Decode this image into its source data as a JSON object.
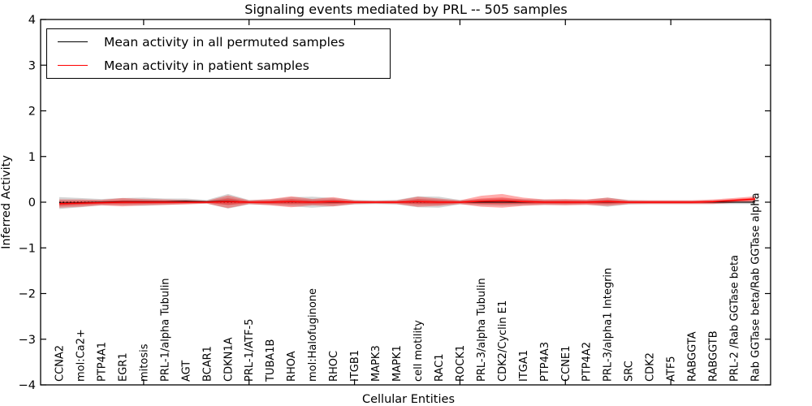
{
  "chart_data": {
    "type": "line",
    "title": "Signaling events mediated by PRL -- 505 samples",
    "xlabel": "Cellular Entities",
    "ylabel": "Inferred Activity",
    "ylim": [
      -4,
      4
    ],
    "ytick_labels": [
      "4",
      "3",
      "2",
      "1",
      "0",
      "−1",
      "−2",
      "−3",
      "−4"
    ],
    "grid": false,
    "legend_position": "upper left",
    "zero_line": "dotted black at y=0",
    "band_meaning": "shaded region = mean ± std for each series",
    "categories": [
      "CCNA2",
      "mol:Ca2+",
      "PTP4A1",
      "EGR1",
      "mitosis",
      "PRL-1/alpha Tubulin",
      "AGT",
      "BCAR1",
      "CDKN1A",
      "PRL-1/ATF-5",
      "TUBA1B",
      "RHOA",
      "mol:Halofuginone",
      "RHOC",
      "ITGB1",
      "MAPK3",
      "MAPK1",
      "cell motility",
      "RAC1",
      "ROCK1",
      "PRL-3/alpha Tubulin",
      "CDK2/Cyclin E1",
      "ITGA1",
      "PTP4A3",
      "CCNE1",
      "PTP4A2",
      "PRL-3/alpha1 Integrin",
      "SRC",
      "CDK2",
      "ATF5",
      "RABGGTA",
      "RABGGTB",
      "PRL-2 /Rab GGTase beta",
      "Rab GGTase beta/Rab GGTase alpha"
    ],
    "series": [
      {
        "name": "Mean activity in all permuted samples",
        "color": "#000000",
        "band_color": "#666666",
        "values": [
          -0.02,
          -0.01,
          0,
          0.01,
          0.01,
          0.01,
          0.02,
          0.01,
          0.02,
          0,
          0,
          0.01,
          0,
          0,
          0,
          0,
          0,
          0.01,
          0,
          0,
          0,
          0,
          0,
          0,
          0,
          0,
          0,
          0,
          0,
          0,
          0,
          0,
          0,
          0
        ],
        "std": [
          0.13,
          0.1,
          0.07,
          0.08,
          0.09,
          0.07,
          0.06,
          0.04,
          0.16,
          0.05,
          0.06,
          0.1,
          0.12,
          0.09,
          0.05,
          0.04,
          0.05,
          0.12,
          0.12,
          0.05,
          0.07,
          0.08,
          0.07,
          0.06,
          0.06,
          0.05,
          0.1,
          0.05,
          0.04,
          0.04,
          0.04,
          0.04,
          0.04,
          0.04
        ]
      },
      {
        "name": "Mean activity in patient samples",
        "color": "#ff0000",
        "band_color": "#ff0000",
        "values": [
          -0.03,
          -0.02,
          -0.01,
          0,
          0,
          0,
          0,
          0,
          0.01,
          0,
          0,
          0.01,
          0,
          0.01,
          0,
          0,
          0,
          0.01,
          0,
          0,
          0.02,
          0.03,
          0.01,
          0,
          0,
          0,
          0.01,
          0,
          0,
          0,
          0,
          0.01,
          0.04,
          0.07
        ],
        "std": [
          0.09,
          0.08,
          0.06,
          0.09,
          0.07,
          0.06,
          0.05,
          0.03,
          0.14,
          0.04,
          0.07,
          0.12,
          0.07,
          0.1,
          0.04,
          0.03,
          0.04,
          0.11,
          0.08,
          0.04,
          0.12,
          0.15,
          0.09,
          0.06,
          0.07,
          0.06,
          0.09,
          0.04,
          0.04,
          0.04,
          0.04,
          0.05,
          0.05,
          0.06
        ]
      }
    ]
  }
}
